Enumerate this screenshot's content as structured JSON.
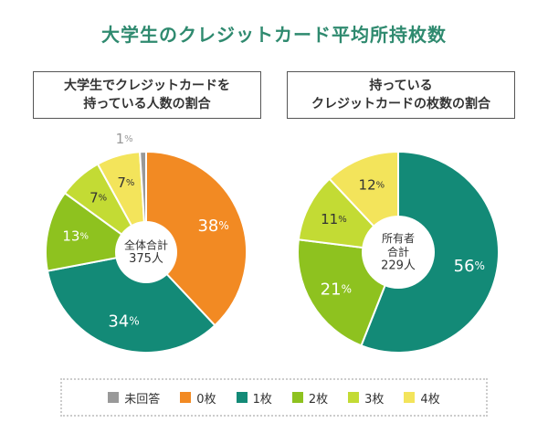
{
  "title": "大学生のクレジットカード平均所持枚数",
  "colors": {
    "未回答": "#999999",
    "0枚": "#f28a23",
    "1枚": "#138a77",
    "2枚": "#8ec21f",
    "3枚": "#c3db34",
    "4枚": "#f3e45b",
    "label_light": "#ffffff",
    "label_dark": "#333333"
  },
  "legend": [
    {
      "key": "未回答",
      "label": "未回答"
    },
    {
      "key": "0枚",
      "label": "0枚"
    },
    {
      "key": "1枚",
      "label": "1枚"
    },
    {
      "key": "2枚",
      "label": "2枚"
    },
    {
      "key": "3枚",
      "label": "3枚"
    },
    {
      "key": "4枚",
      "label": "4枚"
    }
  ],
  "chart_data": [
    {
      "type": "pie",
      "title_lines": [
        "大学生でクレジットカードを",
        "持っている人数の割合"
      ],
      "center_lines": [
        "全体合計",
        "375人"
      ],
      "slices": [
        {
          "category": "0枚",
          "value": 38,
          "label": "38%"
        },
        {
          "category": "1枚",
          "value": 34,
          "label": "34%"
        },
        {
          "category": "2枚",
          "value": 13,
          "label": "13%"
        },
        {
          "category": "3枚",
          "value": 7,
          "label": "7%"
        },
        {
          "category": "4枚",
          "value": 7,
          "label": "7%"
        },
        {
          "category": "未回答",
          "value": 1,
          "label": "1%"
        }
      ]
    },
    {
      "type": "pie",
      "title_lines": [
        "持っている",
        "クレジットカードの枚数の割合"
      ],
      "center_lines": [
        "所有者",
        "合計",
        "229人"
      ],
      "slices": [
        {
          "category": "1枚",
          "value": 56,
          "label": "56%"
        },
        {
          "category": "2枚",
          "value": 21,
          "label": "21%"
        },
        {
          "category": "3枚",
          "value": 11,
          "label": "11%"
        },
        {
          "category": "4枚",
          "value": 12,
          "label": "12%"
        }
      ]
    }
  ]
}
